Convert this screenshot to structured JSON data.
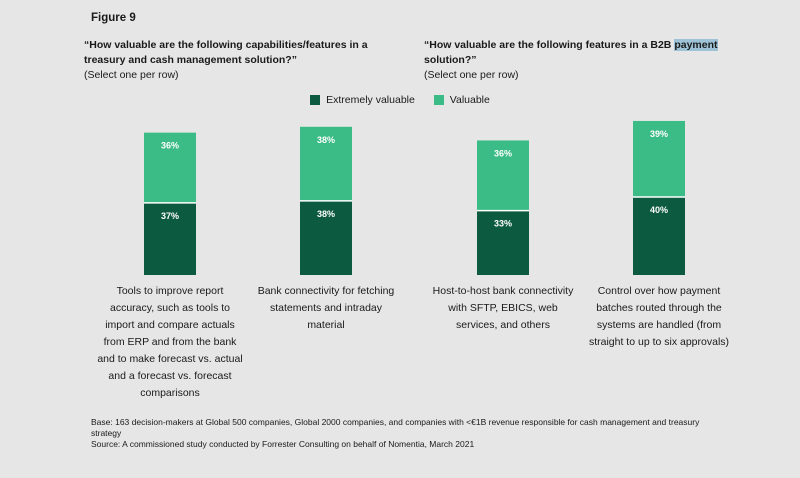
{
  "figure_label": "Figure 9",
  "questions": [
    {
      "title": "“How valuable are the following capabilities/features in a treasury and cash management solution?”",
      "subtitle": "(Select one per row)"
    },
    {
      "title_before": "“How valuable are the following features in a B2B ",
      "title_highlight": "payment",
      "title_after": " solution?”",
      "subtitle": "(Select one per row)"
    }
  ],
  "legend": [
    {
      "name": "Extremely valuable",
      "color": "#0c5a40"
    },
    {
      "name": "Valuable",
      "color": "#3bbb86"
    }
  ],
  "chart_data": {
    "type": "bar",
    "stacked": true,
    "categories": [
      "Tools to improve report accuracy, such as tools to import and compare actuals from ERP and from the bank and to make forecast vs. actual and a forecast vs. forecast comparisons",
      "Bank connectivity for fetching statements and intraday material",
      "Host-to-host bank connectivity with SFTP, EBICS, web services, and others",
      "Control over how payment batches routed through the systems are handled (from straight to up to six approvals)"
    ],
    "series": [
      {
        "name": "Extremely valuable",
        "values": [
          37,
          38,
          33,
          40
        ],
        "labels": [
          "37%",
          "38%",
          "33%",
          "40%"
        ],
        "color": "#0c5a40"
      },
      {
        "name": "Valuable",
        "values": [
          36,
          38,
          36,
          39
        ],
        "labels": [
          "36%",
          "38%",
          "36%",
          "39%"
        ],
        "color": "#3bbb86"
      }
    ],
    "ylim": [
      0,
      100
    ],
    "grid": false,
    "legend_position": "top-center"
  },
  "footnote": {
    "base": "Base: 163 decision-makers at Global 500 companies, Global 2000 companies, and companies with <€1B revenue responsible for cash management and treasury strategy",
    "source": "Source: A commissioned study conducted by Forrester Consulting on behalf of Nomentia, March 2021"
  }
}
